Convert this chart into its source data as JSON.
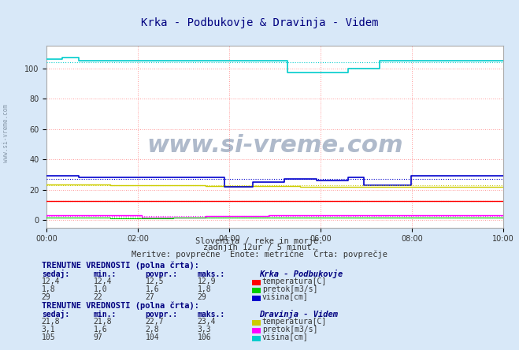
{
  "title": "Krka - Podbukovje & Dravinja - Videm",
  "title_color": "#000080",
  "bg_color": "#d8e8f8",
  "plot_bg_color": "#ffffff",
  "grid_color_major": "#ff9999",
  "grid_color_minor": "#dddddd",
  "x_ticks": [
    "00:00",
    "02:00",
    "04:00",
    "06:00",
    "08:00",
    "10:00"
  ],
  "x_tick_positions": [
    0,
    24,
    48,
    72,
    96,
    120
  ],
  "n_points": 145,
  "ylim": [
    -5,
    115
  ],
  "yticks": [
    0,
    20,
    40,
    60,
    80,
    100
  ],
  "subtitle1": "Slovenija / reke in morje.",
  "subtitle2": "zadnjih 12ur / 5 minut.",
  "subtitle3": "Meritve: povprečne  Enote: metrične  Črta: povprečje",
  "watermark": "www.si-vreme.com",
  "station1_name": "Krka - Podbukovje",
  "station2_name": "Dravinja - Videm",
  "table_header": "TRENUTNE VREDNOSTI (polna črta):",
  "col_headers": [
    "sedaj:",
    "min.:",
    "povpr.:",
    "maks.:"
  ],
  "s1_temp": {
    "sedaj": "12,4",
    "min": "12,4",
    "povpr": "12,5",
    "maks": "12,9",
    "label": "temperatura[C]",
    "color": "#ff0000"
  },
  "s1_pretok": {
    "sedaj": "1,8",
    "min": "1,0",
    "povpr": "1,6",
    "maks": "1,8",
    "label": "pretok[m3/s]",
    "color": "#00cc00"
  },
  "s1_visina": {
    "sedaj": "29",
    "min": "22",
    "povpr": "27",
    "maks": "29",
    "label": "višina[cm]",
    "color": "#0000cc"
  },
  "s2_temp": {
    "sedaj": "21,8",
    "min": "21,8",
    "povpr": "22,7",
    "maks": "23,4",
    "label": "temperatura[C]",
    "color": "#cccc00"
  },
  "s2_pretok": {
    "sedaj": "3,1",
    "min": "1,6",
    "povpr": "2,8",
    "maks": "3,3",
    "label": "pretok[m3/s]",
    "color": "#ff00ff"
  },
  "s2_visina": {
    "sedaj": "105",
    "min": "97",
    "povpr": "104",
    "maks": "106",
    "label": "višina[cm]",
    "color": "#00cccc"
  },
  "logo_text": "www.si-vreme.com",
  "logo_color": "#1a3a6a"
}
